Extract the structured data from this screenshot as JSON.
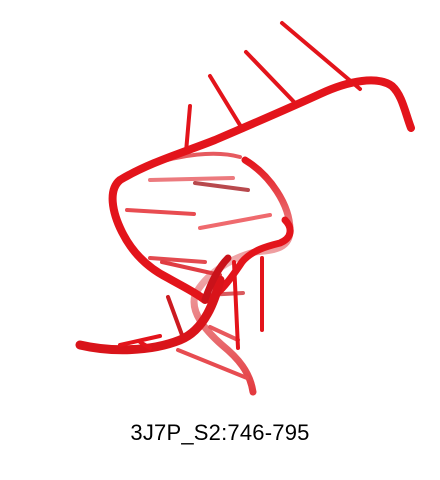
{
  "structure": {
    "molecule_type": "RNA helix (cartoon)",
    "color": "#e3141b",
    "color_dark": "#b50d12",
    "color_faded": "#f0a8aa"
  },
  "caption": "3J7P_S2:746-795"
}
